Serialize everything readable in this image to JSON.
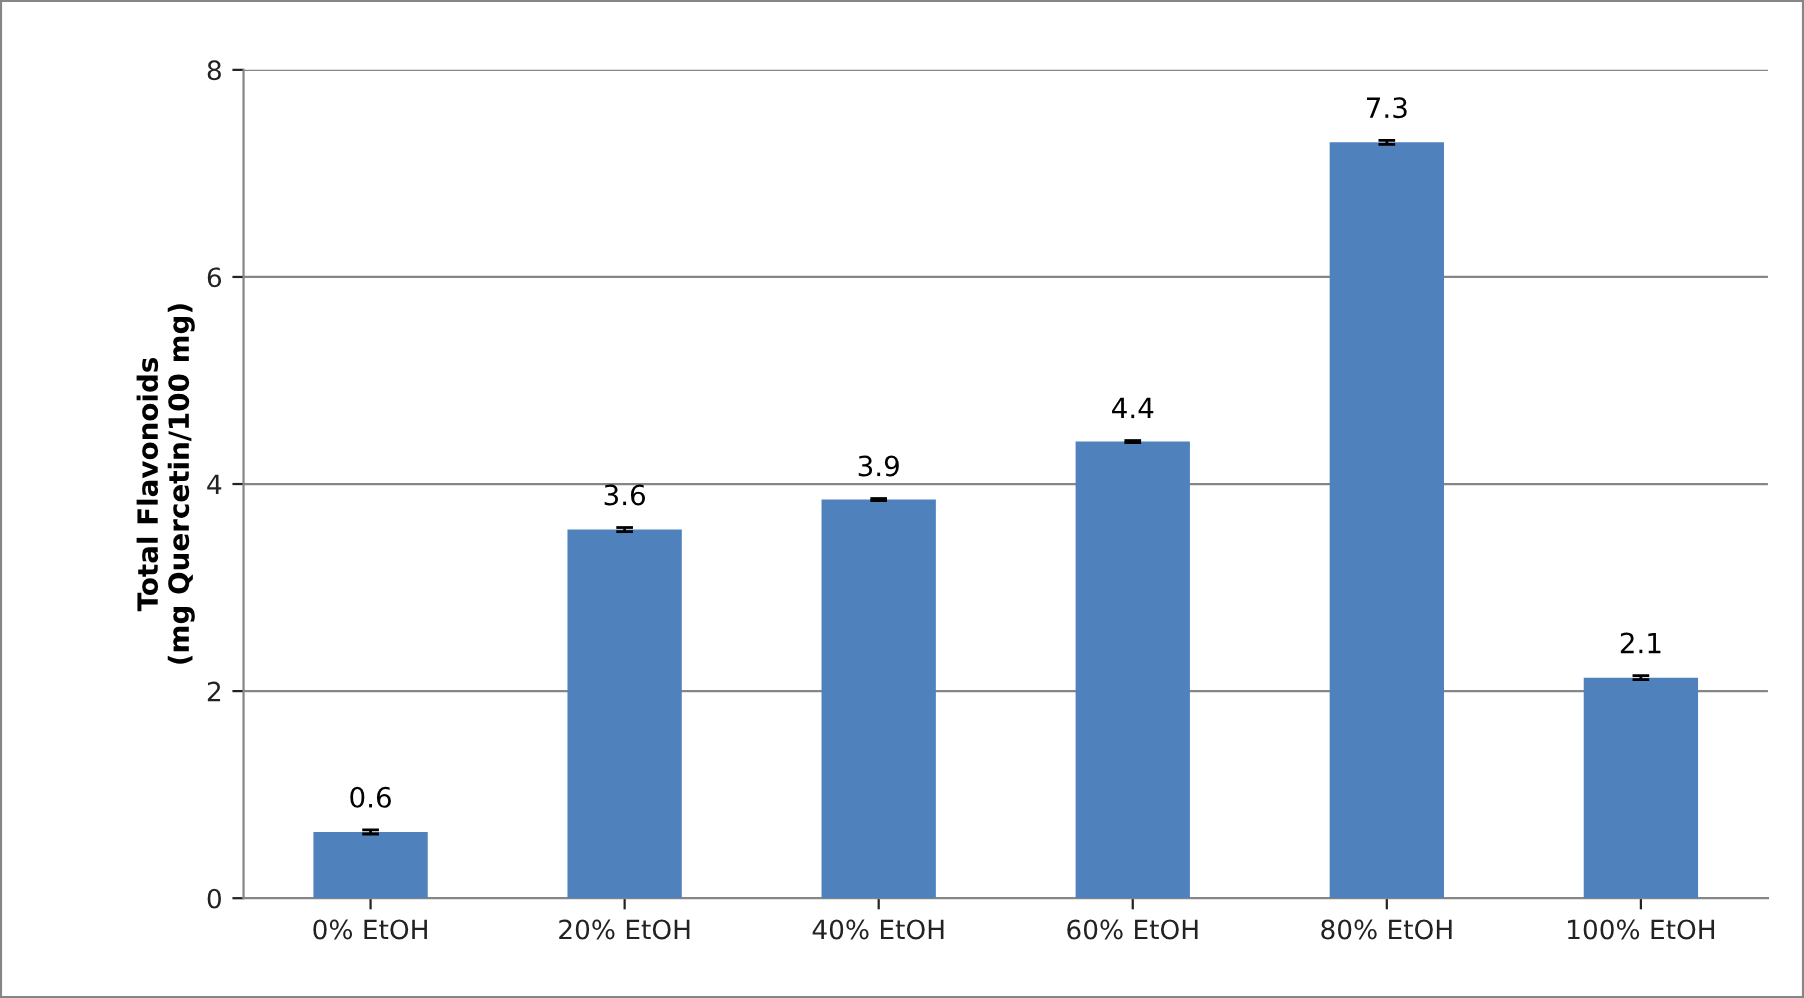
{
  "chart_data": {
    "type": "bar",
    "ylabel": "Total Flavonoids\n(mg Quercetin/100 mg)",
    "categories": [
      "0% EtOH",
      "20% EtOH",
      "40% EtOH",
      "60% EtOH",
      "80% EtOH",
      "100% EtOH"
    ],
    "values": [
      0.64,
      3.56,
      3.85,
      4.41,
      7.3,
      2.13
    ],
    "errors": [
      0.02,
      0.02,
      0.01,
      0.01,
      0.02,
      0.02
    ],
    "value_labels": [
      "0.6",
      "3.6",
      "3.9",
      "4.4",
      "7.3",
      "2.1"
    ],
    "color": "#4f81bd",
    "ylim": [
      0,
      8
    ],
    "yticks": [
      0,
      2,
      4,
      6,
      8
    ],
    "grid": "y"
  }
}
